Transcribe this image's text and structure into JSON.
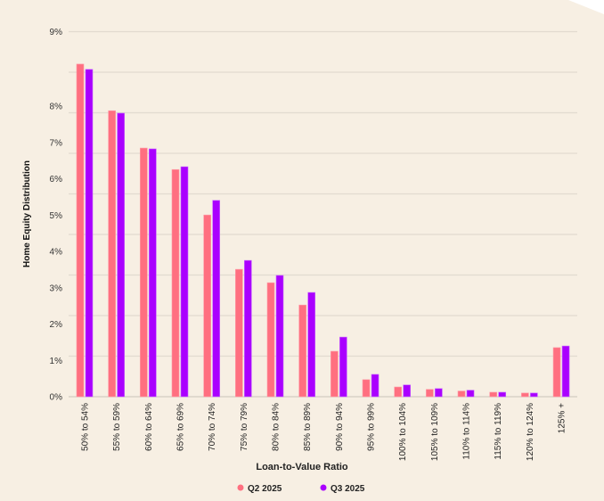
{
  "chart_data": {
    "type": "bar",
    "title": "",
    "xlabel": "Loan-to-Value Ratio",
    "ylabel": "Home Equity Distribution",
    "ylim": [
      0,
      9
    ],
    "grid": true,
    "legend_placement": "bottom",
    "y_tick_labels": [
      "0%",
      "1%",
      "2%",
      "3%",
      "4%",
      "5%",
      "6%",
      "7%",
      "8%",
      "9%"
    ],
    "categories": [
      "50% to 54%",
      "55% to 59%",
      "60% to 64%",
      "65% to 69%",
      "70% to 74%",
      "75% to 79%",
      "80% to 84%",
      "85% to 89%",
      "90% to 94%",
      "95% to 99%",
      "100% to 104%",
      "105% to 109%",
      "110% to 114%",
      "115% to 119%",
      "120% to 124%",
      "125% +"
    ],
    "series": [
      {
        "name": "Q2 2025",
        "color": "#ff6f80",
        "values": [
          8.2,
          7.05,
          6.13,
          5.6,
          4.48,
          3.14,
          2.81,
          2.26,
          1.12,
          0.42,
          0.24,
          0.18,
          0.14,
          0.11,
          0.09,
          1.21
        ]
      },
      {
        "name": "Q3 2025",
        "color": "#aa00ff",
        "values": [
          8.07,
          6.99,
          6.11,
          5.67,
          4.84,
          3.36,
          2.99,
          2.57,
          1.47,
          0.55,
          0.29,
          0.2,
          0.16,
          0.11,
          0.09,
          1.25
        ]
      }
    ]
  }
}
